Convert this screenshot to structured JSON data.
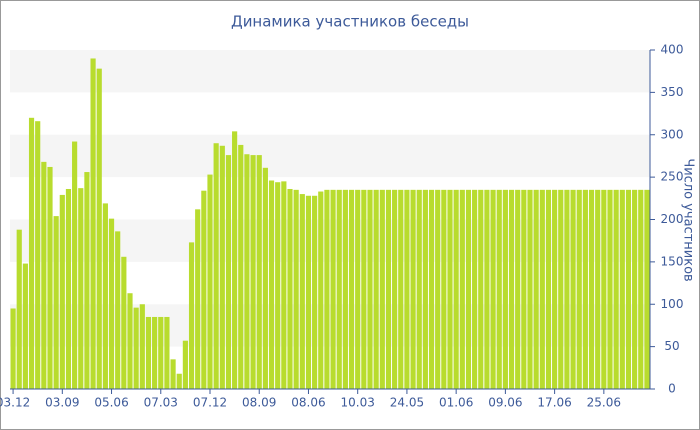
{
  "chart_data": {
    "type": "bar",
    "title": "Динамика участников беседы",
    "y_label": "Число участников",
    "categories": [
      "03.12",
      null,
      null,
      null,
      null,
      null,
      null,
      null,
      "03.09",
      null,
      null,
      null,
      null,
      null,
      null,
      null,
      "05.06",
      null,
      null,
      null,
      null,
      null,
      null,
      null,
      "07.03",
      null,
      null,
      null,
      null,
      null,
      null,
      null,
      "07.12",
      null,
      null,
      null,
      null,
      null,
      null,
      null,
      "08.09",
      null,
      null,
      null,
      null,
      null,
      null,
      null,
      "08.06",
      null,
      null,
      null,
      null,
      null,
      null,
      null,
      "10.03",
      null,
      null,
      null,
      null,
      null,
      null,
      null,
      "24.05",
      null,
      null,
      null,
      null,
      null,
      null,
      null,
      "01.06",
      null,
      null,
      null,
      null,
      null,
      null,
      null,
      "09.06",
      null,
      null,
      null,
      null,
      null,
      null,
      null,
      "17.06",
      null,
      null,
      null,
      null,
      null,
      null,
      null,
      "25.06",
      null,
      null,
      null,
      null,
      null,
      null,
      null
    ],
    "values": [
      95,
      188,
      148,
      320,
      316,
      268,
      262,
      204,
      229,
      236,
      292,
      237,
      256,
      390,
      378,
      219,
      201,
      186,
      156,
      113,
      96,
      100,
      85,
      85,
      85,
      85,
      35,
      18,
      57,
      173,
      212,
      234,
      253,
      290,
      287,
      276,
      304,
      288,
      277,
      276,
      276,
      261,
      246,
      244,
      245,
      236,
      235,
      230,
      228,
      228,
      233,
      235,
      235,
      235,
      235,
      235,
      235,
      235,
      235,
      235,
      235,
      235,
      235,
      235,
      235,
      235,
      235,
      235,
      235,
      235,
      235,
      235,
      235,
      235,
      235,
      235,
      235,
      235,
      235,
      235,
      235,
      235,
      235,
      235,
      235,
      235,
      235,
      235,
      235,
      235,
      235,
      235,
      235,
      235,
      235,
      235,
      235,
      235,
      235,
      235,
      235,
      235,
      235,
      235
    ],
    "color": "#b8dc2e",
    "ylim": [
      0,
      400
    ],
    "yticks": [
      0,
      50,
      100,
      150,
      200,
      250,
      300,
      350,
      400
    ],
    "y_axis_side": "right",
    "grid": true
  }
}
